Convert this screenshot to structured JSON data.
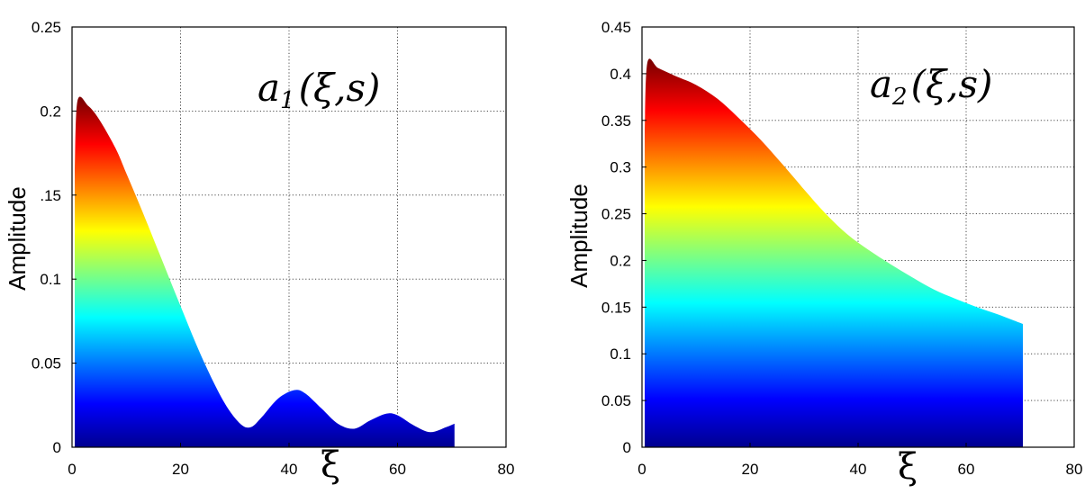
{
  "chart_data": [
    {
      "type": "area",
      "annotation": {
        "base": "a",
        "sub": "1",
        "args": "(ξ,s)"
      },
      "xlabel": "ξ",
      "ylabel": "Amplitude",
      "xlim": [
        0,
        80
      ],
      "ylim": [
        0,
        0.25
      ],
      "xticks": [
        "0",
        "20",
        "40",
        "60",
        "80"
      ],
      "yticks": [
        "0",
        "0.05",
        "0.1",
        ".15",
        "0.2",
        "0.25"
      ],
      "grid": true,
      "colormap": "jet",
      "x": [
        0.5,
        1,
        3,
        5,
        8,
        10,
        13,
        16,
        20,
        24,
        28,
        31,
        33,
        35,
        38,
        41,
        43,
        46,
        49,
        52,
        55,
        58,
        60,
        63,
        66,
        69,
        70.5
      ],
      "y": [
        0.165,
        0.206,
        0.203,
        0.195,
        0.178,
        0.163,
        0.14,
        0.116,
        0.084,
        0.053,
        0.027,
        0.014,
        0.012,
        0.018,
        0.029,
        0.034,
        0.032,
        0.023,
        0.014,
        0.011,
        0.016,
        0.02,
        0.019,
        0.013,
        0.009,
        0.012,
        0.014
      ]
    },
    {
      "type": "area",
      "annotation": {
        "base": "a",
        "sub": "2",
        "args": "(ξ,s)"
      },
      "xlabel": "ξ",
      "ylabel": "Amplitude",
      "xlim": [
        0,
        80
      ],
      "ylim": [
        0,
        0.45
      ],
      "xticks": [
        "0",
        "20",
        "40",
        "60",
        "80"
      ],
      "yticks": [
        "0",
        "0.05",
        "0.1",
        "0.15",
        "0.2",
        "0.25",
        "0.3",
        "0.35",
        "0.4",
        "0.45"
      ],
      "grid": true,
      "colormap": "jet",
      "x": [
        0.5,
        1,
        3,
        6,
        10,
        14,
        18,
        22,
        26,
        30,
        34,
        38,
        42,
        46,
        50,
        54,
        58,
        62,
        66,
        70.5
      ],
      "y": [
        0.34,
        0.412,
        0.406,
        0.398,
        0.388,
        0.373,
        0.352,
        0.329,
        0.303,
        0.276,
        0.25,
        0.228,
        0.211,
        0.196,
        0.182,
        0.169,
        0.159,
        0.15,
        0.142,
        0.132
      ]
    }
  ]
}
